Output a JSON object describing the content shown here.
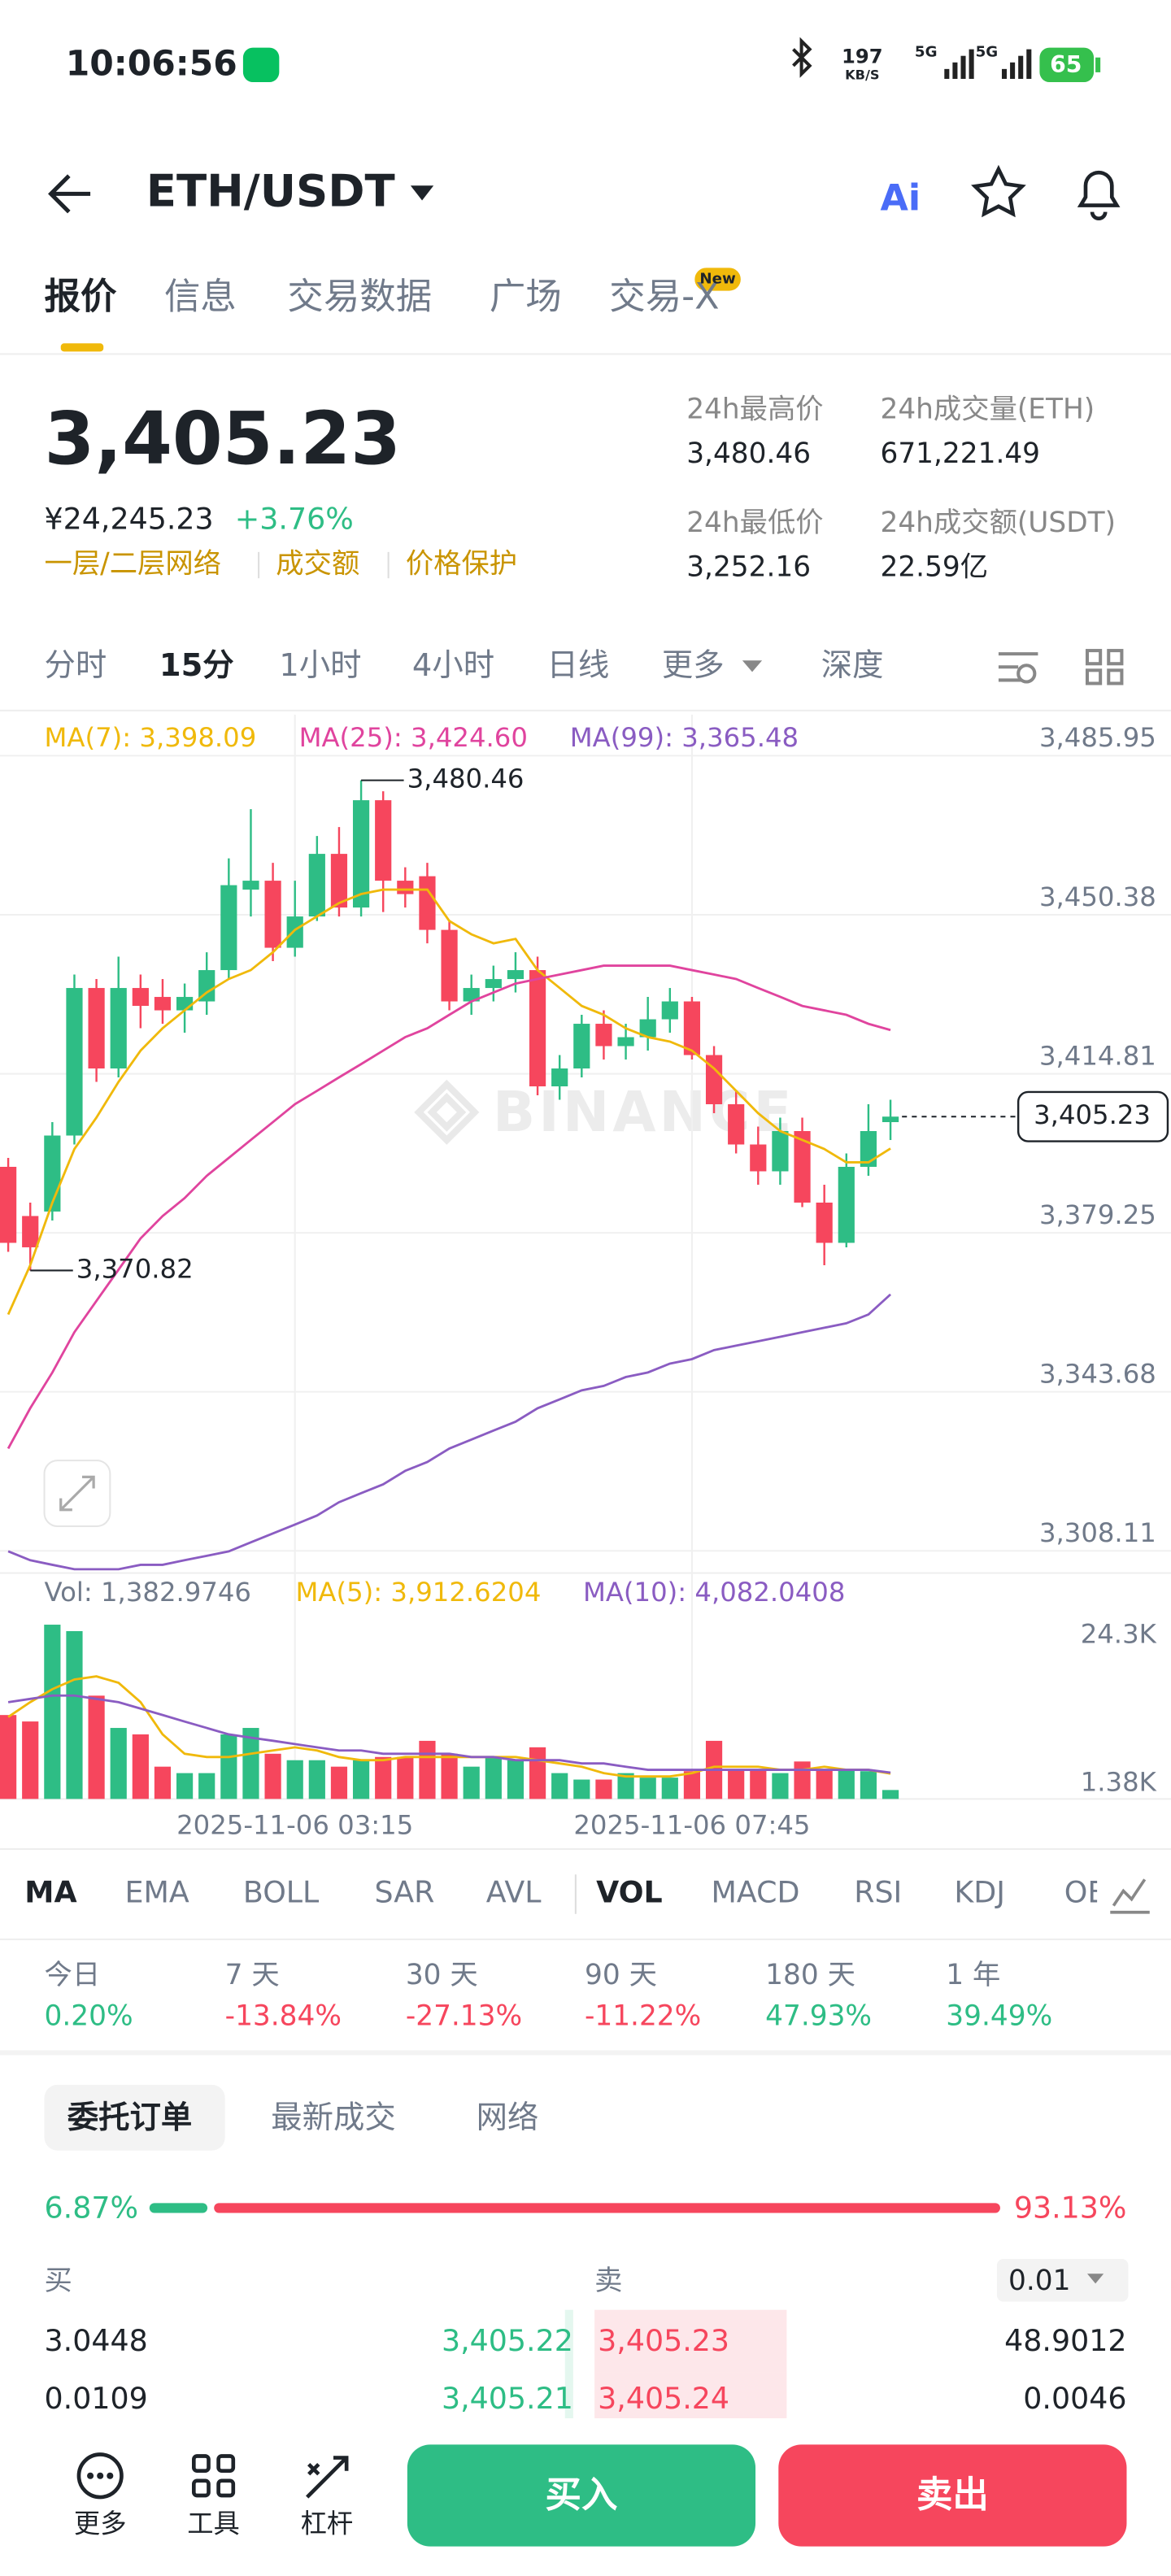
{
  "status_bar": {
    "time": "10:06:56",
    "speed": "197",
    "speed_unit": "KB/S",
    "network": [
      "5G",
      "5G"
    ],
    "battery": "65"
  },
  "header": {
    "pair": "ETH/USDT",
    "ai": "Ai"
  },
  "tabs": [
    "报价",
    "信息",
    "交易数据",
    "广场",
    "交易-X"
  ],
  "tab_badge": "New",
  "ticker": {
    "price": "3,405.23",
    "cny": "¥24,245.23",
    "change": "+3.76%",
    "tags": [
      "一层/二层网络",
      "成交额",
      "价格保护"
    ],
    "stats": [
      {
        "label": "24h最高价",
        "value": "3,480.46"
      },
      {
        "label": "24h成交量(ETH)",
        "value": "671,221.49"
      },
      {
        "label": "24h最低价",
        "value": "3,252.16"
      },
      {
        "label": "24h成交额(USDT)",
        "value": "22.59亿"
      }
    ]
  },
  "intervals": [
    "分时",
    "15分",
    "1小时",
    "4小时",
    "日线",
    "更多",
    "深度"
  ],
  "chart_data": [
    {
      "type": "candlestick",
      "up_color": "#2ebd85",
      "down_color": "#f6465d",
      "watermark": "BINANCE",
      "categories": [
        null,
        null,
        null,
        null,
        null,
        null,
        null,
        null,
        null,
        null,
        null,
        null,
        null,
        "2025-11-06 03:15",
        null,
        null,
        null,
        null,
        null,
        null,
        null,
        null,
        null,
        null,
        null,
        null,
        null,
        null,
        null,
        null,
        null,
        "2025-11-06 07:45",
        null,
        null,
        null,
        null,
        null,
        null,
        null,
        null,
        null
      ],
      "ohlc": [
        [
          3394,
          3396,
          3375,
          3377
        ],
        [
          3383,
          3386,
          3370.82,
          3376
        ],
        [
          3384,
          3404,
          3382,
          3401
        ],
        [
          3401,
          3437,
          3399,
          3434
        ],
        [
          3434,
          3436,
          3413,
          3416
        ],
        [
          3416,
          3441,
          3414,
          3434
        ],
        [
          3434,
          3437,
          3425,
          3430
        ],
        [
          3432,
          3436,
          3426,
          3429
        ],
        [
          3429,
          3435,
          3424,
          3432
        ],
        [
          3431,
          3442,
          3428,
          3438
        ],
        [
          3438,
          3463,
          3436,
          3457
        ],
        [
          3456,
          3474,
          3450,
          3458
        ],
        [
          3458,
          3462,
          3440,
          3443
        ],
        [
          3443,
          3458,
          3441,
          3450
        ],
        [
          3450,
          3468,
          3449,
          3464
        ],
        [
          3464,
          3470,
          3450,
          3452
        ],
        [
          3452,
          3480.46,
          3450,
          3476
        ],
        [
          3476,
          3478,
          3451,
          3458
        ],
        [
          3458,
          3461,
          3452,
          3455
        ],
        [
          3459,
          3462,
          3444,
          3447
        ],
        [
          3447,
          3449,
          3429,
          3431
        ],
        [
          3431,
          3437,
          3428,
          3434
        ],
        [
          3434,
          3439,
          3431,
          3436
        ],
        [
          3436,
          3442,
          3433,
          3438
        ],
        [
          3438,
          3441,
          3410,
          3412
        ],
        [
          3412,
          3419,
          3409,
          3416
        ],
        [
          3416,
          3428,
          3414,
          3426
        ],
        [
          3426,
          3429,
          3418,
          3421
        ],
        [
          3421,
          3426,
          3418,
          3423
        ],
        [
          3423,
          3432,
          3420,
          3427
        ],
        [
          3427,
          3434,
          3424,
          3431
        ],
        [
          3431,
          3432,
          3418,
          3419
        ],
        [
          3419,
          3421,
          3406,
          3408
        ],
        [
          3408,
          3411,
          3397,
          3399
        ],
        [
          3399,
          3403,
          3390,
          3393
        ],
        [
          3393,
          3405,
          3390,
          3402
        ],
        [
          3402,
          3405,
          3385,
          3386
        ],
        [
          3386,
          3390,
          3372,
          3377
        ],
        [
          3377,
          3397,
          3376,
          3394
        ],
        [
          3394,
          3408,
          3392,
          3402
        ],
        [
          3404,
          3409,
          3400,
          3405.23
        ]
      ],
      "ma": [
        {
          "name": "MA(7): 3,398.09",
          "color": "#f0b90b",
          "values": [
            3361,
            3372,
            3386,
            3398,
            3405,
            3413,
            3420,
            3425,
            3429,
            3433,
            3436,
            3438,
            3442,
            3447,
            3450,
            3453,
            3455,
            3456,
            3456,
            3456,
            3449,
            3446,
            3444,
            3445,
            3438,
            3434,
            3430,
            3428,
            3425,
            3423,
            3422,
            3420,
            3416,
            3411,
            3406,
            3402,
            3400,
            3398,
            3395,
            3395,
            3398.09
          ]
        },
        {
          "name": "MA(25): 3,424.60",
          "color": "#e0449e",
          "values": [
            3331,
            3340,
            3348,
            3357,
            3364,
            3371,
            3378,
            3383,
            3387,
            3392,
            3396,
            3400,
            3404,
            3408,
            3411,
            3414,
            3417,
            3420,
            3423,
            3425,
            3428,
            3431,
            3433,
            3435,
            3436,
            3437,
            3438,
            3439,
            3439,
            3439,
            3439,
            3438,
            3437,
            3436,
            3434,
            3432,
            3430,
            3429,
            3428,
            3426,
            3424.6
          ]
        },
        {
          "name": "MA(99): 3,365.48",
          "color": "#8a5cc2",
          "values": [
            3308,
            3306,
            3305,
            3304,
            3304,
            3304,
            3305,
            3305,
            3306,
            3307,
            3308,
            3310,
            3312,
            3314,
            3316,
            3319,
            3321,
            3323,
            3326,
            3328,
            3331,
            3333,
            3335,
            3337,
            3340,
            3342,
            3344,
            3345,
            3347,
            3348,
            3350,
            3351,
            3353,
            3354,
            3355,
            3356,
            3357,
            3358,
            3359,
            3361,
            3365.48
          ]
        }
      ],
      "ylim": [
        3303.33,
        3495.14
      ],
      "yticks": [
        {
          "value": 3485.95,
          "label": "3,485.95"
        },
        {
          "value": 3450.38,
          "label": "3,450.38"
        },
        {
          "value": 3414.81,
          "label": "3,414.81"
        },
        {
          "value": 3379.25,
          "label": "3,379.25"
        },
        {
          "value": 3343.68,
          "label": "3,343.68"
        },
        {
          "value": 3308.11,
          "label": "3,308.11"
        }
      ],
      "annotations": [
        {
          "value": 3480.46,
          "label": "3,480.46"
        },
        {
          "value": 3370.82,
          "label": "3,370.82"
        }
      ],
      "last_price": {
        "value": 3405.23,
        "label": "3,405.23"
      }
    },
    {
      "type": "bar",
      "title": "Vol: 1,382.9746",
      "values": [
        13000,
        12000,
        27000,
        26000,
        16000,
        11000,
        10000,
        5000,
        4000,
        4000,
        10000,
        11000,
        7000,
        6000,
        6000,
        5000,
        6000,
        6500,
        6500,
        9000,
        7000,
        5000,
        6500,
        6000,
        8000,
        4000,
        3000,
        3000,
        4000,
        3300,
        3300,
        4300,
        9000,
        4500,
        4500,
        4000,
        5800,
        4500,
        4500,
        4300,
        1382.9746
      ],
      "series": [
        {
          "name": "MA(5): 3,912.6204",
          "color": "#f0b90b",
          "values": [
            12700,
            15000,
            17000,
            18500,
            19000,
            18000,
            15000,
            10000,
            7000,
            6500,
            6500,
            7000,
            7500,
            8000,
            7500,
            6500,
            6000,
            6000,
            6500,
            6500,
            6500,
            6500,
            6500,
            6500,
            6000,
            5500,
            5000,
            4000,
            3500,
            3500,
            3500,
            4000,
            5000,
            5000,
            5000,
            4500,
            4500,
            5000,
            4500,
            4500,
            3912.6204
          ]
        },
        {
          "name": "MA(10): 4,082.0408",
          "color": "#8a5cc2",
          "values": [
            15000,
            15500,
            16000,
            16000,
            15500,
            15000,
            14000,
            13000,
            12000,
            11000,
            10000,
            9500,
            9000,
            8500,
            8000,
            7500,
            7500,
            7000,
            7000,
            7000,
            7000,
            6500,
            6500,
            6000,
            6000,
            6000,
            5500,
            5500,
            5000,
            4500,
            4500,
            4500,
            4500,
            4500,
            4500,
            4500,
            4500,
            4500,
            4500,
            4500,
            4082.0408
          ]
        }
      ],
      "ylim": [
        0,
        28000
      ],
      "yticks": [
        {
          "value": 24300,
          "label": "24.3K"
        },
        {
          "value": 1380,
          "label": "1.38K"
        }
      ]
    }
  ],
  "indicators": [
    "MA",
    "EMA",
    "BOLL",
    "SAR",
    "AVL",
    "VOL",
    "MACD",
    "RSI",
    "KDJ",
    "OBV"
  ],
  "performance": [
    {
      "label": "今日",
      "value": "0.20%"
    },
    {
      "label": "7 天",
      "value": "-13.84%"
    },
    {
      "label": "30 天",
      "value": "-27.13%"
    },
    {
      "label": "90 天",
      "value": "-11.22%"
    },
    {
      "label": "180 天",
      "value": "47.93%"
    },
    {
      "label": "1 年",
      "value": "39.49%"
    }
  ],
  "order_book": {
    "tabs": [
      "委托订单",
      "最新成交",
      "网络"
    ],
    "buy_ratio": {
      "value": 6.87,
      "label": "6.87%"
    },
    "sell_ratio": {
      "value": 93.13,
      "label": "93.13%"
    },
    "buy_label": "买",
    "sell_label": "卖",
    "precision": "0.01",
    "rows": [
      [
        "3.0448",
        "3,405.22",
        "3,405.23",
        "48.9012"
      ],
      [
        "0.0109",
        "3,405.21",
        "3,405.24",
        "0.0046"
      ]
    ]
  },
  "bottom_bar": {
    "items": [
      "更多",
      "工具",
      "杠杆"
    ],
    "buy": "买入",
    "sell": "卖出"
  }
}
